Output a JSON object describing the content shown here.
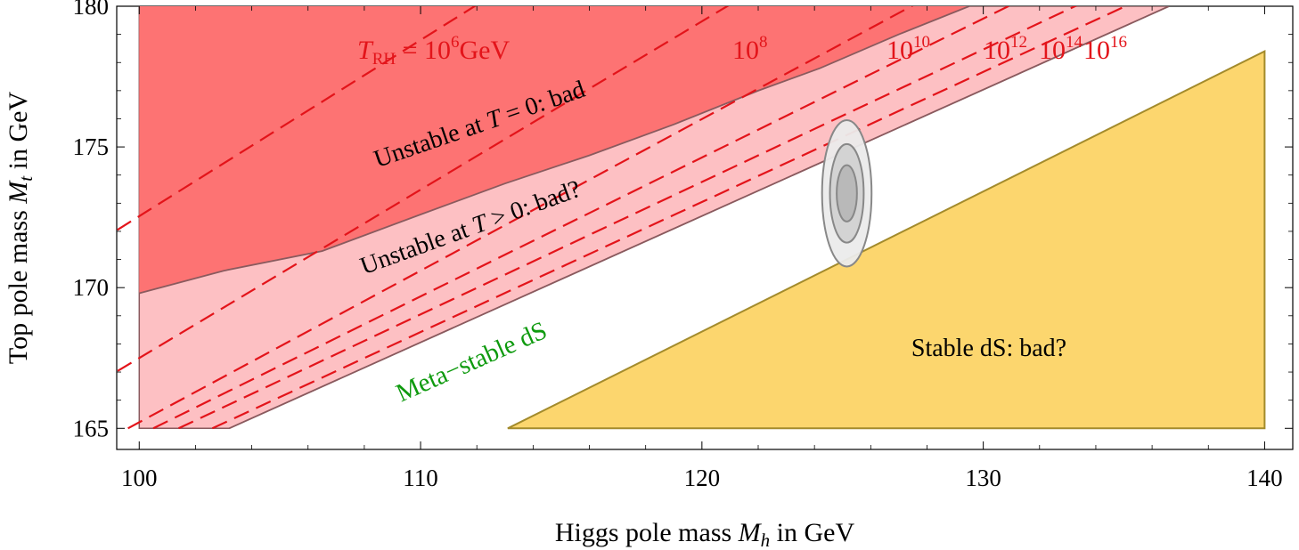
{
  "chart_data": {
    "type": "area",
    "xlabel_prefix": "Higgs pole mass ",
    "xlabel_var": "M",
    "xlabel_sub": "h",
    "xlabel_suffix": " in GeV",
    "ylabel_prefix": "Top pole mass ",
    "ylabel_var": "M",
    "ylabel_sub": "t",
    "ylabel_suffix": " in GeV",
    "xlim": [
      99.2,
      141
    ],
    "ylim": [
      164.25,
      180
    ],
    "xticks": [
      100,
      110,
      120,
      130,
      140
    ],
    "yticks": [
      165,
      170,
      175,
      180
    ],
    "colors": {
      "unstable_T0": "#fd7373",
      "unstable_Tpos": "#fdc0c3",
      "stable": "#fcd66e",
      "stable_edge": "#a38b2c",
      "boundary": "#8a5a5e",
      "dashed": "#e3141a",
      "label_green": "#0e9a0e"
    },
    "regions": [
      {
        "name": "Unstable at T = 0",
        "label": "Unstable at T = 0: bad",
        "boundary": [
          [
            100,
            169.8
          ],
          [
            103,
            170.6
          ],
          [
            106.5,
            171.3
          ],
          [
            110,
            172.6
          ],
          [
            113,
            173.7
          ],
          [
            116,
            174.7
          ],
          [
            119,
            175.8
          ],
          [
            122,
            177.0
          ],
          [
            124.2,
            177.8
          ],
          [
            127,
            179.0
          ],
          [
            129.5,
            180
          ]
        ]
      },
      {
        "name": "Unstable at T > 0",
        "label": "Unstable at T > 0: bad?",
        "boundary": [
          [
            103.2,
            165
          ],
          [
            136.6,
            180
          ]
        ]
      },
      {
        "name": "Stable dS",
        "label": "Stable dS: bad?",
        "boundary": [
          [
            113.1,
            165
          ],
          [
            140,
            178.4
          ],
          [
            140,
            165
          ]
        ]
      },
      {
        "name": "Meta-stable dS",
        "label": "Meta−stable dS"
      }
    ],
    "dashed_lines": [
      {
        "label_base": "10",
        "label_exp": "6",
        "points": [
          [
            98.5,
            171.6
          ],
          [
            112.4,
            180.3
          ]
        ]
      },
      {
        "label_base": "10",
        "label_exp": "8",
        "points": [
          [
            98.5,
            166.6
          ],
          [
            121.4,
            180.3
          ]
        ]
      },
      {
        "label_base": "10",
        "label_exp": "10",
        "points": [
          [
            99.6,
            165.0
          ],
          [
            128.0,
            180.3
          ]
        ]
      },
      {
        "label_base": "10",
        "label_exp": "12",
        "points": [
          [
            100.5,
            165.0
          ],
          [
            131.5,
            180.3
          ]
        ]
      },
      {
        "label_base": "10",
        "label_exp": "14",
        "points": [
          [
            101.4,
            165.0
          ],
          [
            133.9,
            180.3
          ]
        ]
      },
      {
        "label_base": "10",
        "label_exp": "16",
        "points": [
          [
            102.6,
            165.0
          ],
          [
            135.7,
            180.3
          ]
        ]
      }
    ],
    "trh_label_prefix": "T",
    "trh_label_sub": "RH",
    "trh_label_eq": " = ",
    "trh_unit": "GeV",
    "measurement": {
      "center": [
        125.15,
        173.35
      ],
      "ellipses": [
        {
          "sigma": 1,
          "rx": 0.36,
          "ry": 1.0
        },
        {
          "sigma": 2,
          "rx": 0.6,
          "ry": 1.75
        },
        {
          "sigma": 3,
          "rx": 0.88,
          "ry": 2.6
        }
      ]
    }
  }
}
